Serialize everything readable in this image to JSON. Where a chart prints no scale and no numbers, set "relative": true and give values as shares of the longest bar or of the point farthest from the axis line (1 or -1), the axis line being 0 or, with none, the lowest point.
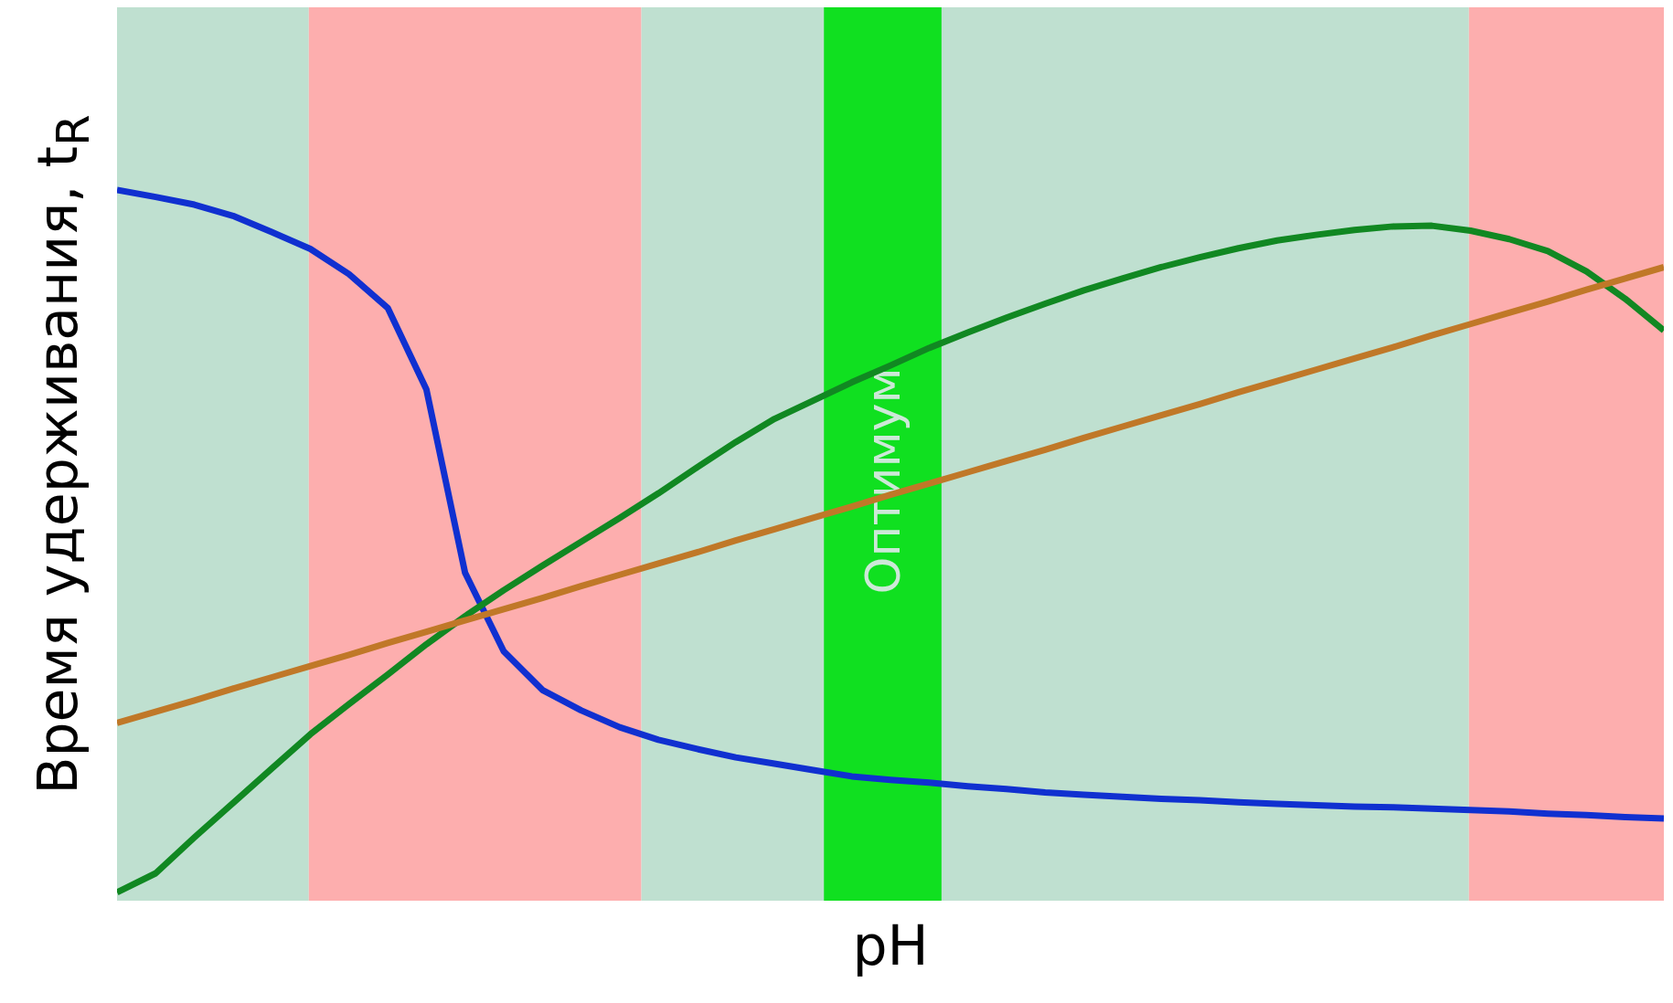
{
  "chart_data": {
    "type": "line",
    "relative": true,
    "xlabel": "pH",
    "ylabel": "Время удерживания, t$_{R}$",
    "grid": false,
    "legend": false,
    "marker": "none",
    "line_style": "solid",
    "categories": [
      null,
      null,
      null,
      null,
      null,
      null,
      null,
      null,
      null,
      null,
      null,
      null,
      null,
      null,
      null,
      null,
      null,
      null,
      null,
      null,
      null,
      null,
      null,
      null,
      null,
      null,
      null,
      null,
      null,
      null,
      null,
      null,
      null,
      null,
      null,
      null,
      null,
      null,
      null,
      null,
      null
    ],
    "annotations": [
      "Оптимум"
    ],
    "series": [
      {
        "color": "#1030d0",
        "values": [
          1.0,
          0.99,
          0.979,
          0.963,
          0.94,
          0.916,
          0.88,
          0.832,
          0.716,
          0.455,
          0.343,
          0.288,
          0.259,
          0.235,
          0.217,
          0.204,
          0.192,
          0.183,
          0.174,
          0.165,
          0.16,
          0.156,
          0.151,
          0.147,
          0.142,
          0.139,
          0.136,
          0.133,
          0.131,
          0.128,
          0.126,
          0.124,
          0.122,
          0.121,
          0.119,
          0.117,
          0.115,
          0.112,
          0.11,
          0.107,
          0.105
        ]
      },
      {
        "color": "#118822",
        "values": [
          0,
          0.027,
          0.078,
          0.127,
          0.176,
          0.225,
          0.268,
          0.31,
          0.353,
          0.393,
          0.43,
          0.465,
          0.499,
          0.533,
          0.568,
          0.605,
          0.641,
          0.674,
          0.7,
          0.726,
          0.75,
          0.775,
          0.797,
          0.818,
          0.838,
          0.857,
          0.874,
          0.89,
          0.904,
          0.917,
          0.928,
          0.936,
          0.943,
          0.948,
          0.949,
          0.942,
          0.93,
          0.913,
          0.884,
          0.845,
          0.8
        ]
      },
      {
        "color": "#c07828",
        "values": [
          0.241,
          0.257,
          0.273,
          0.29,
          0.306,
          0.322,
          0.338,
          0.355,
          0.371,
          0.387,
          0.403,
          0.419,
          0.436,
          0.452,
          0.468,
          0.484,
          0.501,
          0.517,
          0.533,
          0.549,
          0.566,
          0.582,
          0.598,
          0.614,
          0.63,
          0.647,
          0.663,
          0.679,
          0.695,
          0.712,
          0.728,
          0.744,
          0.76,
          0.776,
          0.793,
          0.809,
          0.825,
          0.841,
          0.858,
          0.874,
          0.89
        ]
      }
    ]
  }
}
